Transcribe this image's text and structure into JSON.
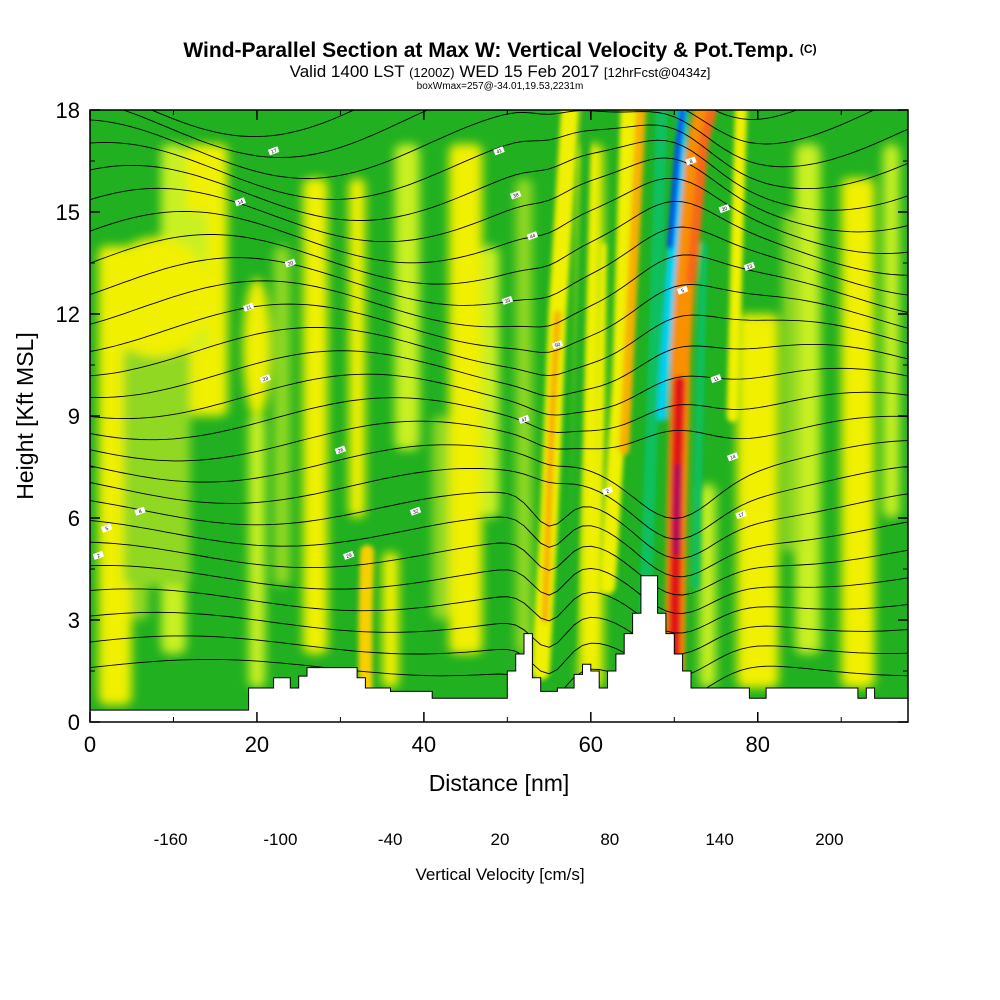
{
  "chart_data": {
    "type": "heatmap",
    "title": "Wind-Parallel Section at Max W: Vertical Velocity & Pot.Temp.",
    "copyright": "(C)",
    "valid_prefix": "Valid 1400 LST",
    "valid_utc": "(1200Z)",
    "valid_date": "WED 15 Feb 2017",
    "forecast": "[12hrFcst@0434z]",
    "box_info": "boxWmax=257@-34.01,19.53,2231m",
    "xlabel": "Distance [nm]",
    "ylabel": "Height [Kft MSL]",
    "xlim": [
      0,
      98
    ],
    "ylim": [
      0,
      18
    ],
    "xticks": [
      0,
      20,
      40,
      60,
      80
    ],
    "yticks": [
      0,
      3,
      6,
      9,
      12,
      15,
      18
    ],
    "colorbar": {
      "label": "Vertical Velocity [cm/s]",
      "levels": [
        -180,
        -160,
        -140,
        -120,
        -100,
        -80,
        -60,
        -40,
        -20,
        0,
        20,
        40,
        60,
        80,
        100,
        120,
        140,
        160,
        180,
        200,
        220
      ],
      "tick_labels": [
        -160,
        -100,
        -40,
        20,
        80,
        140,
        200
      ],
      "colors": [
        "#0000e8",
        "#0044f0",
        "#0090f0",
        "#00d0f0",
        "#00e8c8",
        "#00d890",
        "#10c060",
        "#20b020",
        "#50c020",
        "#90d820",
        "#c8f020",
        "#f0f000",
        "#f8d000",
        "#f8b000",
        "#f89000",
        "#f86818",
        "#f04010",
        "#e01818",
        "#c81040",
        "#b00858"
      ]
    },
    "updraft_cores": [
      {
        "x": 70.5,
        "height_kft": 7.0,
        "w": 200
      },
      {
        "x": 55,
        "height_kft": 8.0,
        "w": 60
      },
      {
        "x": 65,
        "height_kft": 11.0,
        "w": 70
      },
      {
        "x": 33,
        "height_kft": 3.0,
        "w": 60
      },
      {
        "x": 77,
        "height_kft": 14.0,
        "w": 40
      }
    ],
    "downdraft_cores": [
      {
        "x": 72,
        "height_kft": 16.0,
        "w": -160
      },
      {
        "x": 68,
        "height_kft": 9.0,
        "w": -100
      },
      {
        "x": 58,
        "height_kft": 6.0,
        "w": -60
      }
    ],
    "isentrope_labels": [
      "2",
      "5",
      "8",
      "11",
      "14",
      "17",
      "20",
      "23",
      "26",
      "29",
      "32",
      "35",
      "38",
      "41",
      "44",
      "47",
      "50"
    ]
  }
}
